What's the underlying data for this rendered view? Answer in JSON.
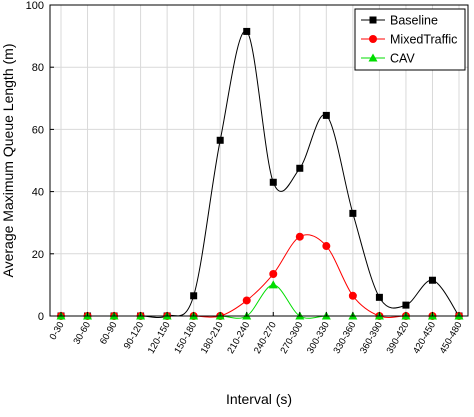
{
  "chart_data": {
    "type": "line",
    "title": "",
    "xlabel": "Interval (s)",
    "ylabel": "Average Maximum Queue Length (m)",
    "ylim": [
      0,
      100
    ],
    "yticks": [
      0,
      20,
      40,
      60,
      80,
      100
    ],
    "grid": true,
    "legend_position": "top-right",
    "categories": [
      "0-30",
      "30-60",
      "60-90",
      "90-120",
      "120-150",
      "150-180",
      "180-210",
      "210-240",
      "240-270",
      "270-300",
      "300-330",
      "330-360",
      "360-390",
      "390-420",
      "420-450",
      "450-480"
    ],
    "series": [
      {
        "name": "Baseline",
        "color": "#000000",
        "marker": "square",
        "values": [
          0,
          0,
          0,
          0,
          0,
          6.5,
          56.5,
          91.5,
          43,
          47.5,
          64.5,
          33,
          6,
          3.5,
          11.5,
          0
        ]
      },
      {
        "name": "MixedTraffic",
        "color": "#ff0000",
        "marker": "circle",
        "values": [
          0,
          0,
          0,
          0,
          0,
          0,
          0,
          5,
          13.5,
          25.5,
          22.5,
          6.5,
          0,
          0,
          0,
          0
        ]
      },
      {
        "name": "CAV",
        "color": "#00dd00",
        "marker": "triangle",
        "values": [
          0,
          0,
          0,
          0,
          0,
          0,
          0,
          0,
          10,
          0,
          0,
          0,
          0,
          0,
          0,
          0
        ]
      }
    ]
  }
}
